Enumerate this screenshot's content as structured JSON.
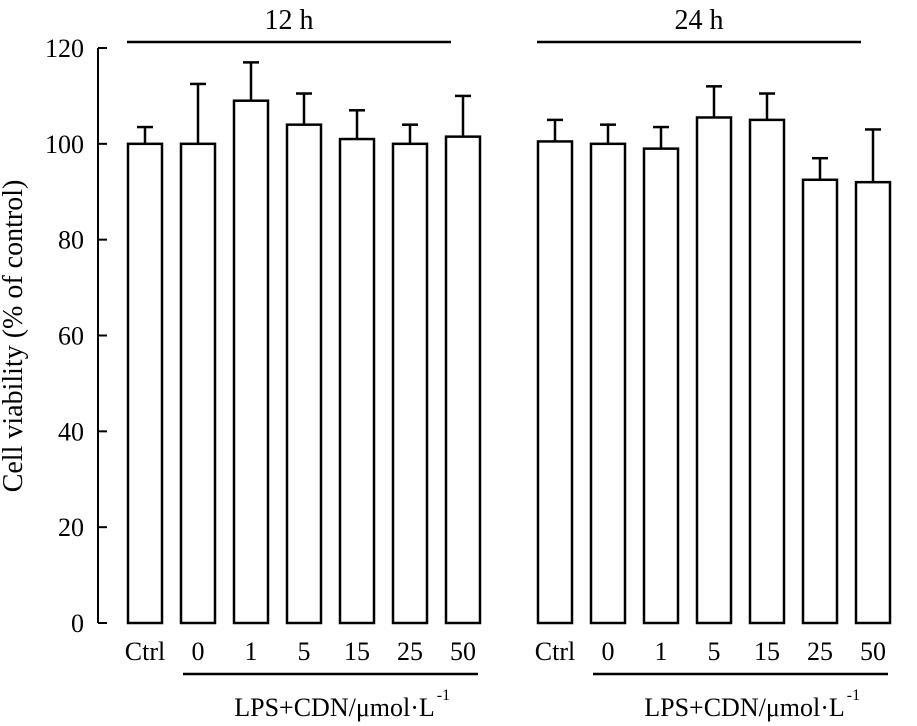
{
  "chart_data": {
    "type": "bar",
    "ylabel": "Cell viability (% of control)",
    "ylim": [
      0,
      120
    ],
    "yticks": [
      "0",
      "20",
      "40",
      "60",
      "80",
      "100",
      "120"
    ],
    "grid": false,
    "groups": [
      {
        "title": "12 h",
        "categories": [
          "Ctrl",
          "0",
          "1",
          "5",
          "15",
          "25",
          "50"
        ],
        "values": [
          100,
          100,
          109,
          104,
          101,
          100,
          101.5
        ],
        "errors": [
          3.5,
          12.5,
          8,
          6.5,
          6,
          4,
          8.5
        ],
        "treatment_label": "LPS+CDN/μmol·L",
        "treatment_sup": "-1"
      },
      {
        "title": "24 h",
        "categories": [
          "Ctrl",
          "0",
          "1",
          "5",
          "15",
          "25",
          "50"
        ],
        "values": [
          100.5,
          100,
          99,
          105.5,
          105,
          92.5,
          92
        ],
        "errors": [
          4.5,
          4,
          4.5,
          6.5,
          5.5,
          4.5,
          11
        ],
        "treatment_label": "LPS+CDN/μmol·L",
        "treatment_sup": "-1"
      }
    ]
  }
}
